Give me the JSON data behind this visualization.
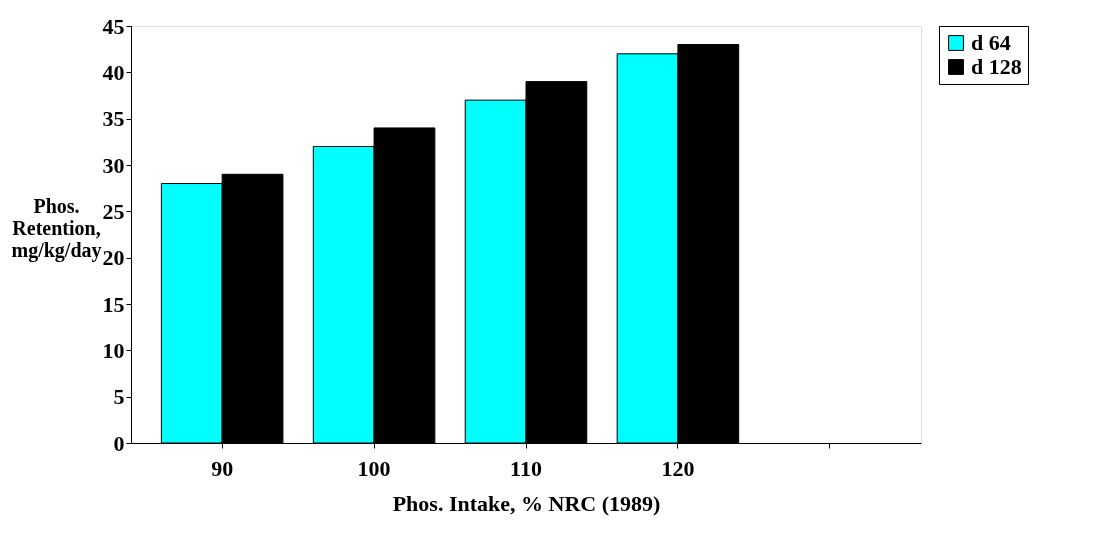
{
  "chart_data": {
    "type": "bar",
    "xlabel": "Phos. Intake, % NRC (1989)",
    "ylabel": "Phos. Retention, mg/kg/day",
    "categories": [
      "90",
      "100",
      "110",
      "120",
      null
    ],
    "series": [
      {
        "name": "d 64",
        "color": "#00ffff",
        "values": [
          28,
          32,
          37,
          42,
          null
        ]
      },
      {
        "name": "d 128",
        "color": "#000000",
        "values": [
          29,
          34,
          39,
          43,
          null
        ]
      }
    ],
    "ylim": [
      0,
      45
    ],
    "yticks": [
      0,
      5,
      10,
      15,
      20,
      25,
      30,
      35,
      40,
      45
    ],
    "grid": false,
    "legend": "right"
  }
}
